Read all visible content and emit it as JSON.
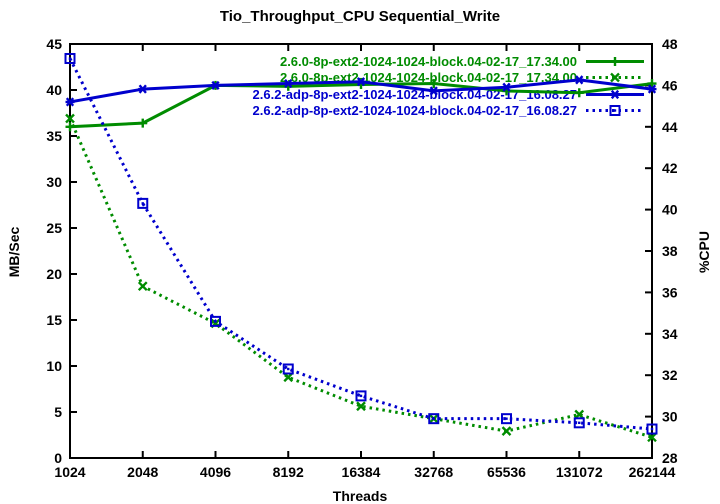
{
  "chart": {
    "title": "Tio_Throughput_CPU Sequential_Write",
    "xlabel": "Threads",
    "ylabel_left": "MB/Sec",
    "ylabel_right": "%CPU",
    "background_color": "#ffffff",
    "frame_color": "#000000",
    "series_colors": {
      "kernel_260": "#008C00",
      "kernel_262_adp": "#0000CD"
    }
  },
  "chart_data": {
    "type": "line",
    "x_scale": "log2",
    "categories": [
      "1024",
      "2048",
      "4096",
      "8192",
      "16384",
      "32768",
      "65536",
      "131072",
      "262144"
    ],
    "xlabel": "Threads",
    "y_left_axis": {
      "label": "MB/Sec",
      "min": 0,
      "max": 45,
      "ticks": [
        "0",
        "5",
        "10",
        "15",
        "20",
        "25",
        "30",
        "35",
        "40",
        "45"
      ]
    },
    "y_right_axis": {
      "label": "%CPU",
      "min": 28,
      "max": 48,
      "ticks": [
        "28",
        "30",
        "32",
        "34",
        "36",
        "38",
        "40",
        "42",
        "44",
        "46",
        "48"
      ]
    },
    "legend_position": "top-center-inside",
    "grid": false,
    "series": [
      {
        "label": "2.6.0-8p-ext2-1024-1024-block.04-02-17_17.34.00",
        "metric": "Throughput",
        "axis": "left",
        "color": "#008C00",
        "line_style": "solid",
        "marker": "plus",
        "values": [
          36.0,
          36.4,
          40.5,
          40.4,
          40.6,
          40.7,
          39.9,
          39.7,
          40.7
        ]
      },
      {
        "label": "2.6.0-8p-ext2-1024-1024-block.04-02-17_17.34.00",
        "metric": "CPU",
        "axis": "right",
        "color": "#008C00",
        "line_style": "dashed",
        "marker": "cross",
        "values": [
          44.4,
          36.3,
          34.5,
          31.9,
          30.5,
          29.9,
          29.3,
          30.1,
          29.0
        ]
      },
      {
        "label": "2.6.2-adp-8p-ext2-1024-1024-block.04-02-17_16.08.27",
        "metric": "Throughput",
        "axis": "left",
        "color": "#0000CD",
        "line_style": "solid",
        "marker": "asterisk",
        "values": [
          38.7,
          40.1,
          40.5,
          40.7,
          40.9,
          39.9,
          40.3,
          41.1,
          40.1
        ]
      },
      {
        "label": "2.6.2-adp-8p-ext2-1024-1024-block.04-02-17_16.08.27",
        "metric": "CPU",
        "axis": "right",
        "color": "#0000CD",
        "line_style": "dashed",
        "marker": "square",
        "values": [
          47.3,
          40.3,
          34.6,
          32.3,
          31.0,
          29.9,
          29.9,
          29.7,
          29.4
        ]
      }
    ]
  }
}
